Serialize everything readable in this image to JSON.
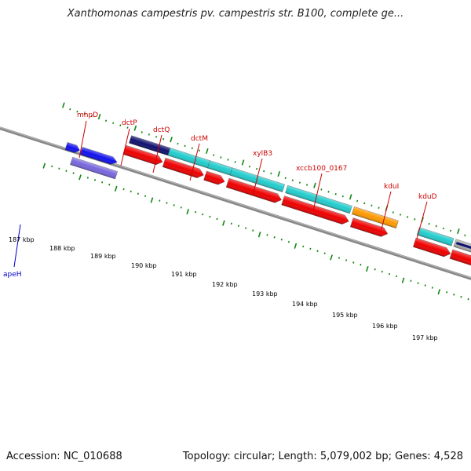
{
  "title": "Xanthomonas campestris pv. campestris str. B100, complete ge...",
  "footer": {
    "accession": "Accession: NC_010688",
    "topology": "Topology: circular; Length: 5,079,002 bp; Genes: 4,528"
  },
  "scale_labels": [
    "187 kbp",
    "188 kbp",
    "189 kbp",
    "190 kbp",
    "191 kbp",
    "192 kbp",
    "193 kbp",
    "194 kbp",
    "195 kbp",
    "196 kbp",
    "197 kbp"
  ],
  "gene_labels": [
    "mhpD",
    "dctP",
    "dctQ",
    "dctM",
    "xylB3",
    "xccb100_0167",
    "kduI",
    "kduD",
    "apeH"
  ],
  "colors": {
    "cds_red": "#ee0000",
    "gene_cyan": "#22cccc",
    "gene_navy": "#101070",
    "gene_blue": "#1111ee",
    "gene_lavender": "#7766dd",
    "gene_orange": "#ff9900",
    "gene_grey": "#aaaaaa",
    "backbone": "#888888",
    "ticks": "#118811",
    "label_red": "#cc0000",
    "label_blue": "#0000cc"
  }
}
